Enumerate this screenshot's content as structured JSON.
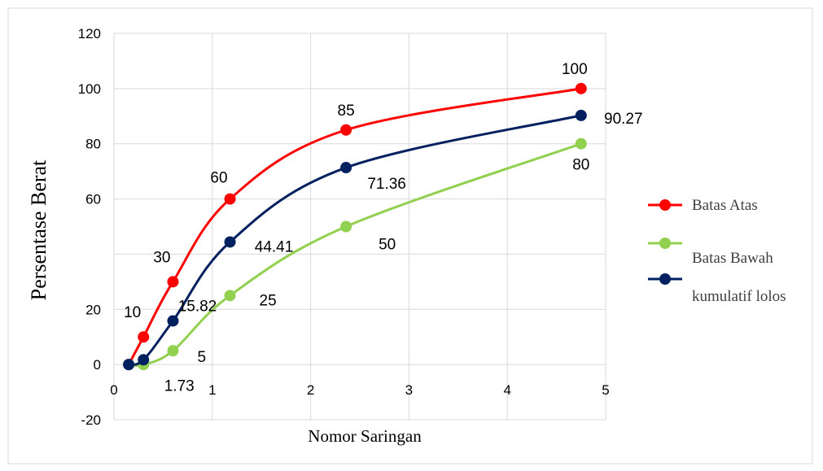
{
  "chart_data": {
    "type": "line",
    "title": "",
    "xlabel": "Nomor Saringan",
    "ylabel": "Persentase Berat",
    "xlim": [
      0,
      5
    ],
    "ylim": [
      -20,
      120
    ],
    "xticks": [
      "0",
      "1",
      "2",
      "3",
      "4",
      "5"
    ],
    "yticks": [
      "-20",
      "0",
      "20",
      "60",
      "80",
      "100",
      "120"
    ],
    "grid": true,
    "legend_position": "right",
    "series": [
      {
        "name": "Batas Atas",
        "color": "#ff0000",
        "x": [
          0.15,
          0.3,
          0.6,
          1.18,
          2.36,
          4.75
        ],
        "y": [
          0,
          10,
          30,
          60,
          85,
          100
        ],
        "labels": [
          "",
          "10",
          "30",
          "60",
          "85",
          "100"
        ]
      },
      {
        "name": "Batas Bawah",
        "color": "#92d050",
        "x": [
          0.15,
          0.3,
          0.6,
          1.18,
          2.36,
          4.75
        ],
        "y": [
          0,
          0,
          5,
          25,
          50,
          80
        ],
        "labels": [
          "",
          "",
          "5",
          "25",
          "50",
          "80"
        ]
      },
      {
        "name": "kumulatif lolos",
        "color": "#002060",
        "x": [
          0.15,
          0.3,
          0.6,
          1.18,
          2.36,
          4.75
        ],
        "y": [
          0,
          1.73,
          15.82,
          44.41,
          71.36,
          90.27
        ],
        "labels": [
          "",
          "1.73",
          "15.82",
          "44.41",
          "71.36",
          "90.27"
        ]
      }
    ]
  }
}
